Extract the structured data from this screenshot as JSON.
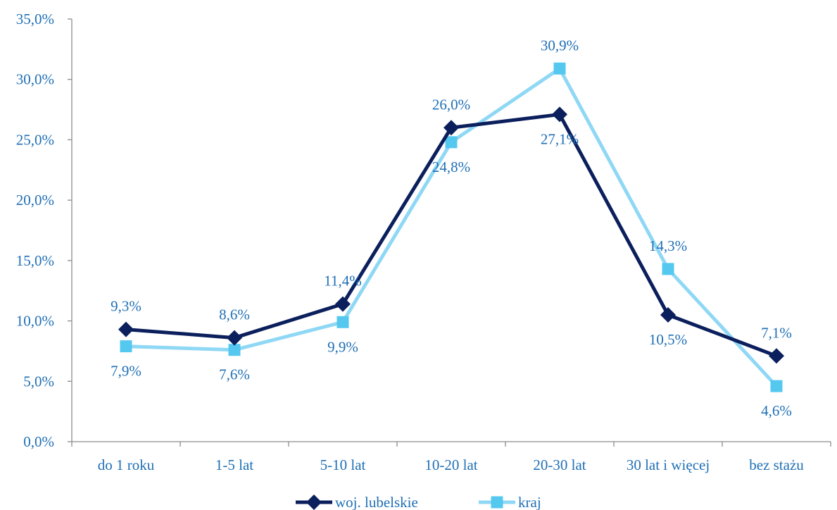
{
  "chart_data": {
    "type": "line",
    "categories": [
      "do 1 roku",
      "1-5 lat",
      "5-10 lat",
      "10-20 lat",
      "20-30 lat",
      "30 lat i więcej",
      "bez stażu"
    ],
    "series": [
      {
        "name": "woj. lubelskie",
        "values": [
          9.3,
          8.6,
          11.4,
          26.0,
          27.1,
          10.5,
          7.1
        ],
        "labels": [
          "9,3%",
          "8,6%",
          "11,4%",
          "26,0%",
          "27,1%",
          "10,5%",
          "7,1%"
        ],
        "label_positions": [
          "above",
          "above",
          "above",
          "above",
          "below",
          "below",
          "above"
        ],
        "color": "#0b1f5c",
        "marker": "diamond"
      },
      {
        "name": "kraj",
        "values": [
          7.9,
          7.6,
          9.9,
          24.8,
          30.9,
          14.3,
          4.6
        ],
        "labels": [
          "7,9%",
          "7,6%",
          "9,9%",
          "24,8%",
          "30,9%",
          "14,3%",
          "4,6%"
        ],
        "label_positions": [
          "below",
          "below",
          "below",
          "below",
          "above",
          "above",
          "below"
        ],
        "color": "#8fd8f5",
        "marker_color": "#55c8f0",
        "marker": "square"
      }
    ],
    "y_ticks": [
      "0,0%",
      "5,0%",
      "10,0%",
      "15,0%",
      "20,0%",
      "25,0%",
      "30,0%",
      "35,0%"
    ],
    "ylim": [
      0,
      35
    ],
    "grid": false,
    "legend_position": "bottom-center",
    "title": "",
    "xlabel": "",
    "ylabel": ""
  }
}
